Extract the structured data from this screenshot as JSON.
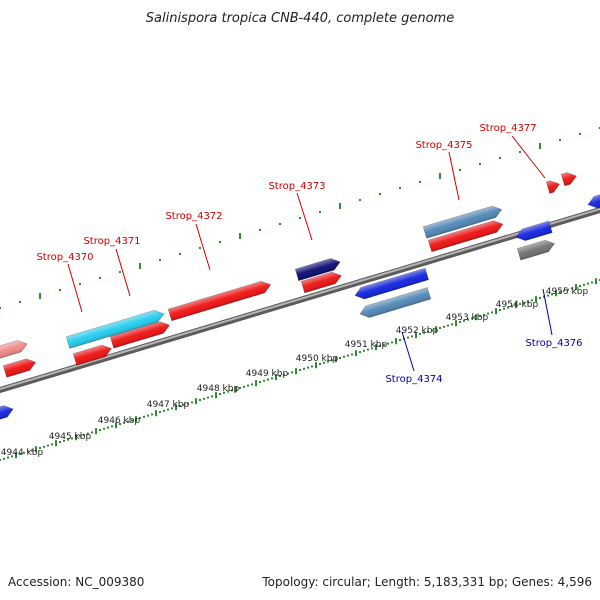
{
  "title": "Salinispora tropica CNB-440, complete genome",
  "footer": {
    "accession": "Accession: NC_009380",
    "summary": "Topology: circular; Length: 5,183,331 bp; Genes: 4,596"
  },
  "colors": {
    "forward_gene": "#ee1111",
    "reverse_gene": "#1122dd",
    "label_forward": "#cc0000",
    "label_reverse": "#000099",
    "backbone": "#8a8a8a",
    "tick": "#2e8b2e",
    "light_blue": "#22ccee",
    "steel_blue": "#4f86b5",
    "navy": "#0a0a70",
    "pink": "#f08888",
    "gray_gene": "#707070"
  },
  "scale_labels": [
    {
      "text": "4944 kbp"
    },
    {
      "text": "4945 kbp"
    },
    {
      "text": "4946 kbp"
    },
    {
      "text": "4947 kbp"
    },
    {
      "text": "4948 kbp"
    },
    {
      "text": "4949 kbp"
    },
    {
      "text": "4950 kbp"
    },
    {
      "text": "4951 kbp"
    },
    {
      "text": "4952 kbp"
    },
    {
      "text": "4953 kbp"
    },
    {
      "text": "4954 kbp"
    },
    {
      "text": "4955 kbp"
    }
  ],
  "gene_labels": [
    {
      "text": "Strop_4370",
      "strand": "forward"
    },
    {
      "text": "Strop_4371",
      "strand": "forward"
    },
    {
      "text": "Strop_4372",
      "strand": "forward"
    },
    {
      "text": "Strop_4373",
      "strand": "forward"
    },
    {
      "text": "Strop_4374",
      "strand": "reverse"
    },
    {
      "text": "Strop_4375",
      "strand": "forward"
    },
    {
      "text": "Strop_4376",
      "strand": "reverse"
    },
    {
      "text": "Strop_4377",
      "strand": "forward"
    }
  ]
}
